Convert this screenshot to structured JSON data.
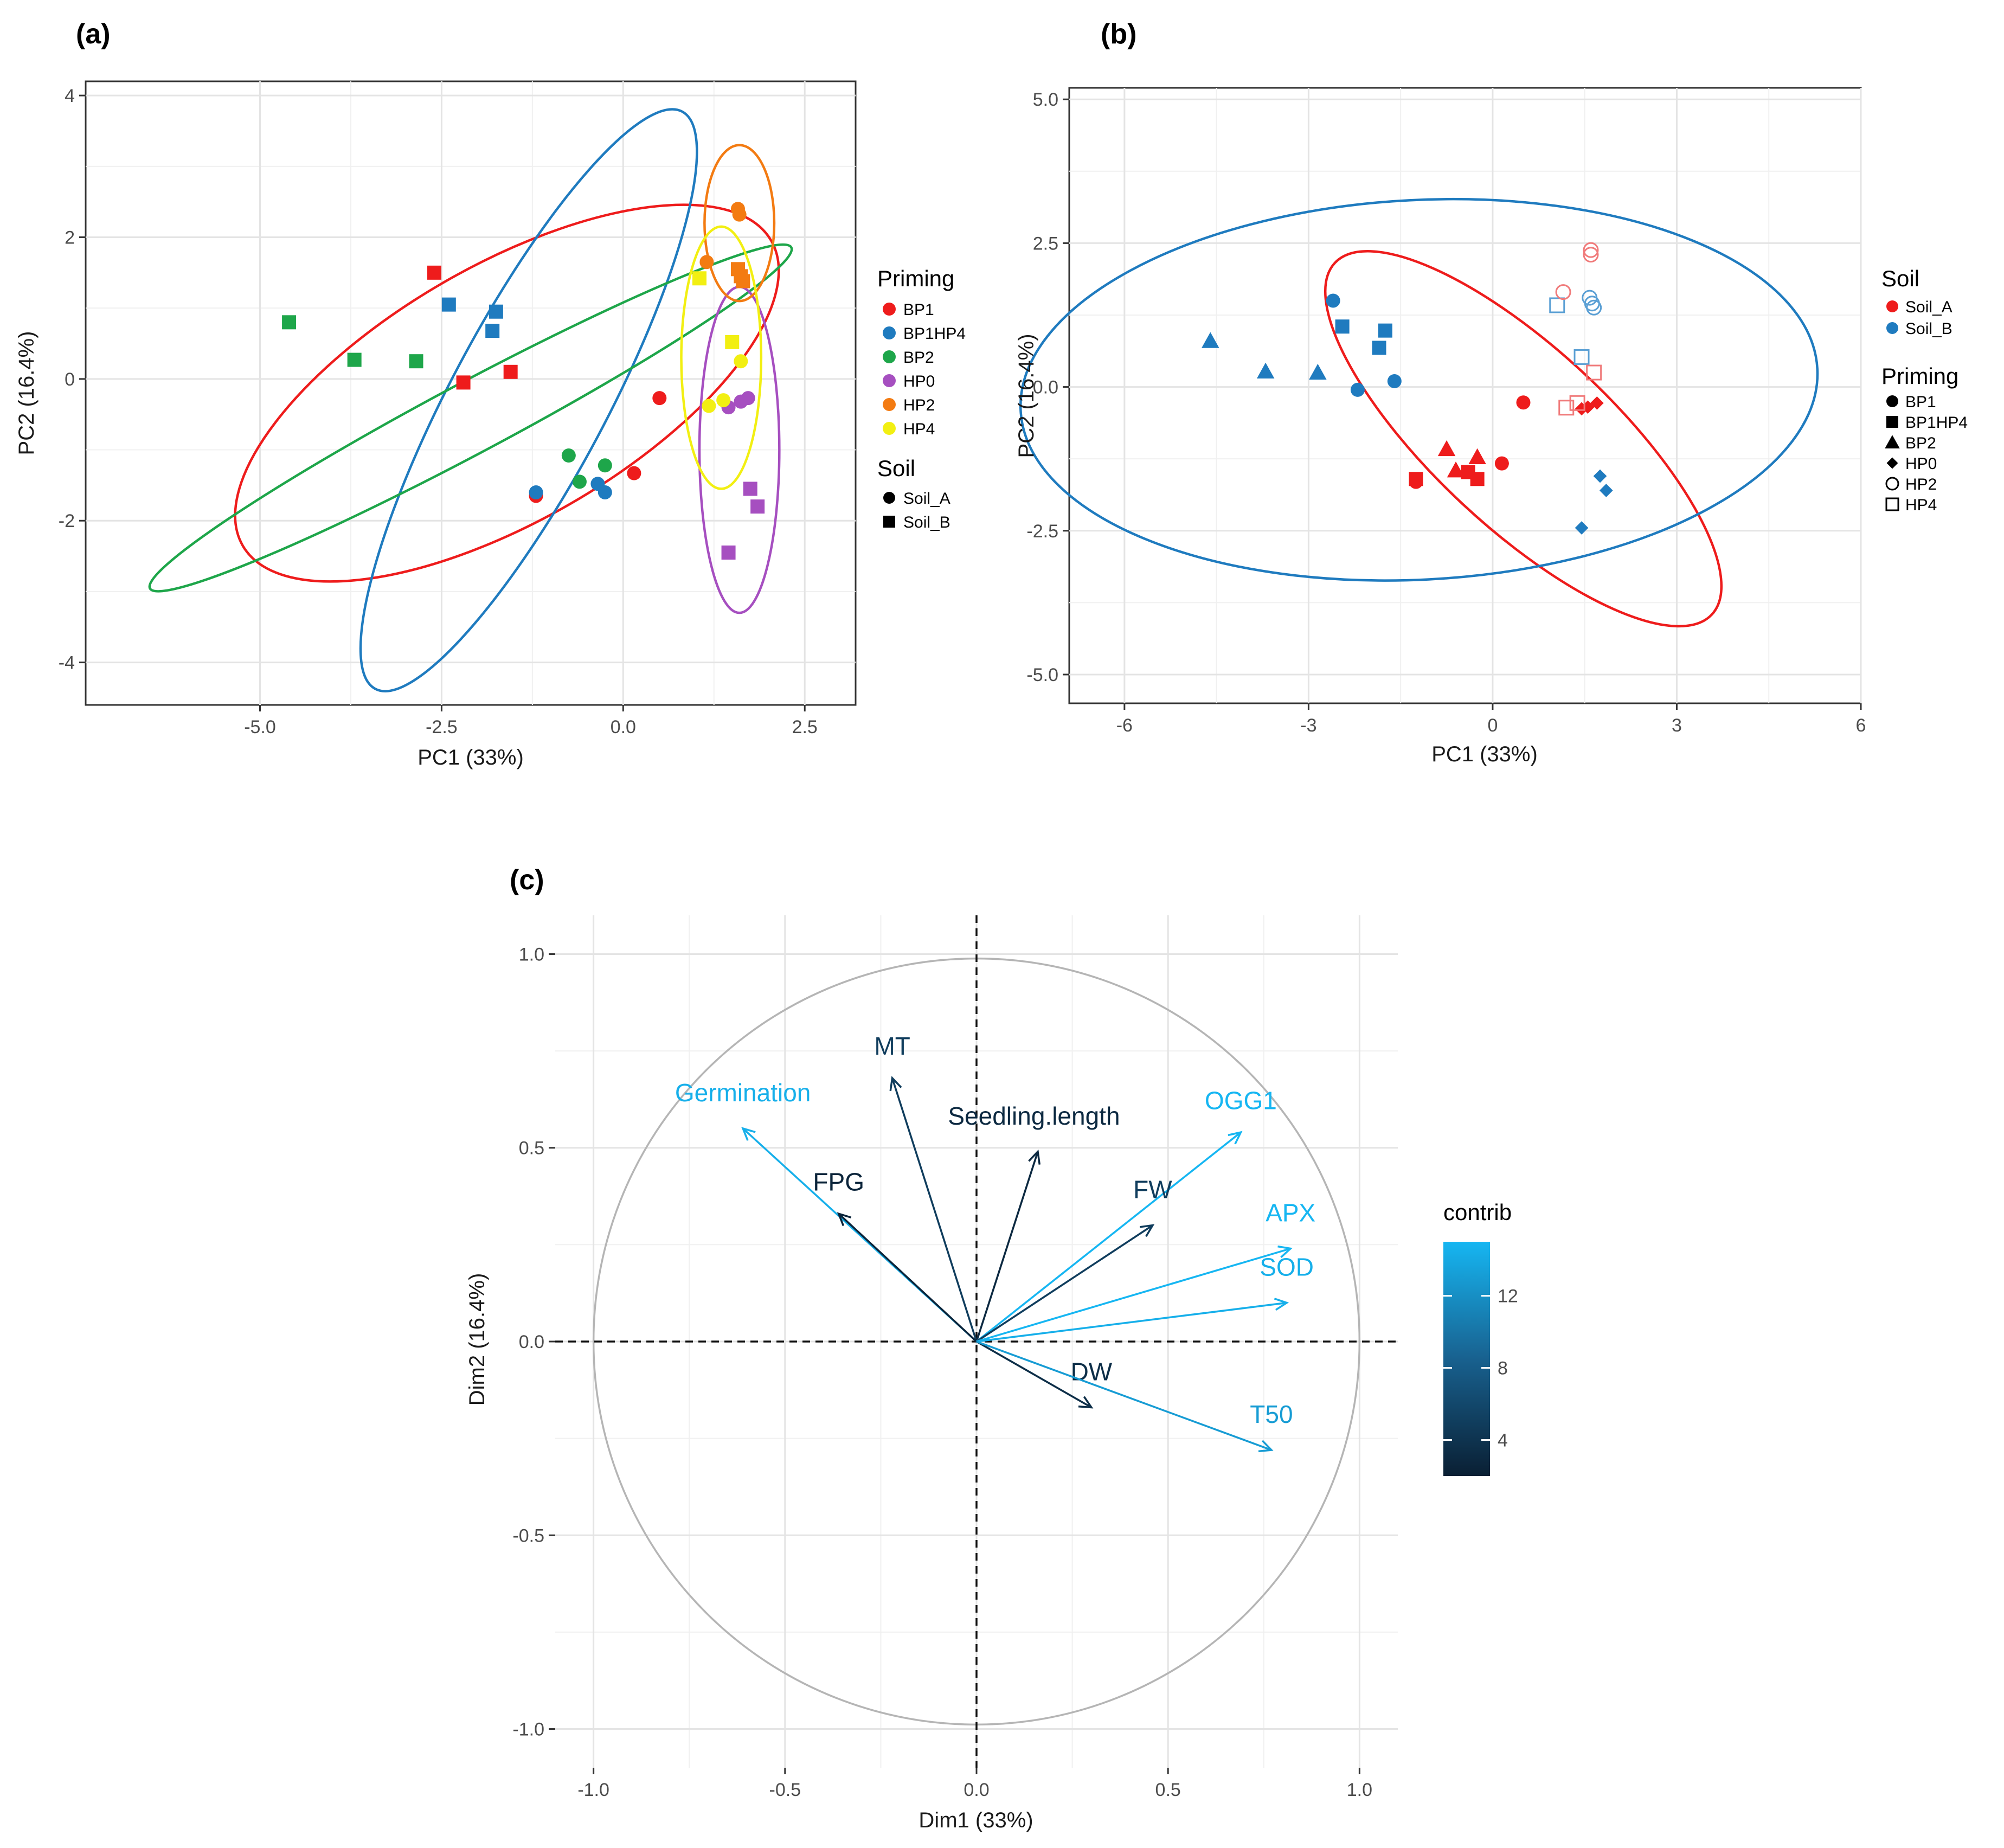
{
  "figure": {
    "label_a": "(a)",
    "label_b": "(b)",
    "label_c": "(c)"
  },
  "colors": {
    "BP1": "#ee1c1c",
    "BP1HP4": "#1f7bbf",
    "BP2": "#1ea64a",
    "HP0": "#a64fc0",
    "HP2": "#f37b12",
    "HP4": "#f2ef12",
    "Soil_A": "#ee1c1c",
    "Soil_B": "#1f7bbf",
    "contrib_low": "#0a1f33",
    "contrib_high": "#16b6f2"
  },
  "chart_data": [
    {
      "id": "a",
      "type": "scatter",
      "title": "(a)",
      "xlabel": "PC1 (33%)",
      "ylabel": "PC2 (16.4%)",
      "xlim": [
        -7.4,
        3.2
      ],
      "ylim": [
        -4.6,
        4.2
      ],
      "xticks": [
        -5.0,
        -2.5,
        0.0,
        2.5
      ],
      "xtick_labels": [
        "-5.0",
        "-2.5",
        "0.0",
        "2.5"
      ],
      "yticks": [
        -4,
        -2,
        0,
        2,
        4
      ],
      "ytick_labels": [
        "-4",
        "-2",
        "0",
        "2",
        "4"
      ],
      "grid": true,
      "legend_priming_title": "Priming",
      "legend_priming": [
        "BP1",
        "BP1HP4",
        "BP2",
        "HP0",
        "HP2",
        "HP4"
      ],
      "legend_soil_title": "Soil",
      "legend_soil": [
        "Soil_A",
        "Soil_B"
      ],
      "ellipses": [
        {
          "group": "BP1",
          "cx": -1.6,
          "cy": -0.2,
          "rx": 4.2,
          "ry": 1.8,
          "angle": -30
        },
        {
          "group": "BP1HP4",
          "cx": -1.3,
          "cy": -0.3,
          "rx": 4.5,
          "ry": 1.1,
          "angle": -62
        },
        {
          "group": "BP2",
          "cx": -2.1,
          "cy": -0.55,
          "rx": 5.0,
          "ry": 0.5,
          "angle": -28
        },
        {
          "group": "HP0",
          "cx": 1.6,
          "cy": -1.0,
          "rx": 0.55,
          "ry": 2.3,
          "angle": 0
        },
        {
          "group": "HP2",
          "cx": 1.6,
          "cy": 2.2,
          "rx": 0.48,
          "ry": 1.1,
          "angle": 0
        },
        {
          "group": "HP4",
          "cx": 1.35,
          "cy": 0.3,
          "rx": 0.55,
          "ry": 1.85,
          "angle": 0
        }
      ],
      "points": [
        {
          "x": -2.6,
          "y": 1.5,
          "g": "BP1",
          "s": "Soil_B"
        },
        {
          "x": -2.2,
          "y": -0.05,
          "g": "BP1",
          "s": "Soil_B"
        },
        {
          "x": -1.55,
          "y": 0.1,
          "g": "BP1",
          "s": "Soil_B"
        },
        {
          "x": 0.5,
          "y": -0.27,
          "g": "BP1",
          "s": "Soil_A"
        },
        {
          "x": 0.15,
          "y": -1.33,
          "g": "BP1",
          "s": "Soil_A"
        },
        {
          "x": -1.2,
          "y": -1.65,
          "g": "BP1",
          "s": "Soil_A"
        },
        {
          "x": -2.4,
          "y": 1.05,
          "g": "BP1HP4",
          "s": "Soil_B"
        },
        {
          "x": -1.75,
          "y": 0.95,
          "g": "BP1HP4",
          "s": "Soil_B"
        },
        {
          "x": -1.8,
          "y": 0.68,
          "g": "BP1HP4",
          "s": "Soil_B"
        },
        {
          "x": -1.2,
          "y": -1.6,
          "g": "BP1HP4",
          "s": "Soil_A"
        },
        {
          "x": -0.35,
          "y": -1.48,
          "g": "BP1HP4",
          "s": "Soil_A"
        },
        {
          "x": -0.25,
          "y": -1.6,
          "g": "BP1HP4",
          "s": "Soil_A"
        },
        {
          "x": -4.6,
          "y": 0.8,
          "g": "BP2",
          "s": "Soil_B"
        },
        {
          "x": -3.7,
          "y": 0.27,
          "g": "BP2",
          "s": "Soil_B"
        },
        {
          "x": -2.85,
          "y": 0.25,
          "g": "BP2",
          "s": "Soil_B"
        },
        {
          "x": -0.75,
          "y": -1.08,
          "g": "BP2",
          "s": "Soil_A"
        },
        {
          "x": -0.6,
          "y": -1.45,
          "g": "BP2",
          "s": "Soil_A"
        },
        {
          "x": -0.25,
          "y": -1.22,
          "g": "BP2",
          "s": "Soil_A"
        },
        {
          "x": 1.45,
          "y": -0.4,
          "g": "HP0",
          "s": "Soil_A"
        },
        {
          "x": 1.62,
          "y": -0.32,
          "g": "HP0",
          "s": "Soil_A"
        },
        {
          "x": 1.72,
          "y": -0.27,
          "g": "HP0",
          "s": "Soil_A"
        },
        {
          "x": 1.75,
          "y": -1.55,
          "g": "HP0",
          "s": "Soil_B"
        },
        {
          "x": 1.85,
          "y": -1.8,
          "g": "HP0",
          "s": "Soil_B"
        },
        {
          "x": 1.45,
          "y": -2.45,
          "g": "HP0",
          "s": "Soil_B"
        },
        {
          "x": 1.15,
          "y": 1.65,
          "g": "HP2",
          "s": "Soil_A"
        },
        {
          "x": 1.58,
          "y": 2.4,
          "g": "HP2",
          "s": "Soil_A"
        },
        {
          "x": 1.6,
          "y": 2.32,
          "g": "HP2",
          "s": "Soil_A"
        },
        {
          "x": 1.58,
          "y": 1.55,
          "g": "HP2",
          "s": "Soil_B"
        },
        {
          "x": 1.62,
          "y": 1.45,
          "g": "HP2",
          "s": "Soil_B"
        },
        {
          "x": 1.65,
          "y": 1.38,
          "g": "HP2",
          "s": "Soil_B"
        },
        {
          "x": 1.05,
          "y": 1.42,
          "g": "HP4",
          "s": "Soil_B"
        },
        {
          "x": 1.5,
          "y": 0.52,
          "g": "HP4",
          "s": "Soil_B"
        },
        {
          "x": 1.62,
          "y": 0.25,
          "g": "HP4",
          "s": "Soil_A"
        },
        {
          "x": 1.18,
          "y": -0.38,
          "g": "HP4",
          "s": "Soil_A"
        },
        {
          "x": 1.38,
          "y": -0.3,
          "g": "HP4",
          "s": "Soil_A"
        }
      ]
    },
    {
      "id": "b",
      "type": "scatter",
      "title": "(b)",
      "xlabel": "PC1 (33%)",
      "ylabel": "PC2 (16.4%)",
      "xlim": [
        -6.9,
        6.0
      ],
      "ylim": [
        -5.5,
        5.2
      ],
      "xticks": [
        -6,
        -3,
        0,
        3,
        6
      ],
      "xtick_labels": [
        "-6",
        "-3",
        "0",
        "3",
        "6"
      ],
      "yticks": [
        -5.0,
        -2.5,
        0.0,
        2.5,
        5.0
      ],
      "ytick_labels": [
        "-5.0",
        "-2.5",
        "0.0",
        "2.5",
        "5.0"
      ],
      "grid": true,
      "legend_soil_title": "Soil",
      "legend_soil": [
        "Soil_A",
        "Soil_B"
      ],
      "legend_priming_title": "Priming",
      "legend_priming": [
        "BP1",
        "BP1HP4",
        "BP2",
        "HP0",
        "HP2",
        "HP4"
      ],
      "ellipses": [
        {
          "group": "Soil_A",
          "cx": 0.5,
          "cy": -0.9,
          "rx": 4.2,
          "ry": 1.55,
          "angle": 43
        },
        {
          "group": "Soil_B",
          "cx": -1.2,
          "cy": -0.05,
          "rx": 6.5,
          "ry": 3.3,
          "angle": -3
        }
      ],
      "points": [
        {
          "x": -4.6,
          "y": 0.8,
          "g": "BP2",
          "s": "Soil_B"
        },
        {
          "x": -3.7,
          "y": 0.27,
          "g": "BP2",
          "s": "Soil_B"
        },
        {
          "x": -2.85,
          "y": 0.25,
          "g": "BP2",
          "s": "Soil_B"
        },
        {
          "x": -2.6,
          "y": 1.5,
          "g": "BP1",
          "s": "Soil_B"
        },
        {
          "x": -2.2,
          "y": -0.05,
          "g": "BP1",
          "s": "Soil_B"
        },
        {
          "x": -1.6,
          "y": 0.1,
          "g": "BP1",
          "s": "Soil_B"
        },
        {
          "x": -2.45,
          "y": 1.05,
          "g": "BP1HP4",
          "s": "Soil_B"
        },
        {
          "x": -1.75,
          "y": 0.98,
          "g": "BP1HP4",
          "s": "Soil_B"
        },
        {
          "x": -1.85,
          "y": 0.68,
          "g": "BP1HP4",
          "s": "Soil_B"
        },
        {
          "x": 1.75,
          "y": -1.55,
          "g": "HP0",
          "s": "Soil_B"
        },
        {
          "x": 1.85,
          "y": -1.8,
          "g": "HP0",
          "s": "Soil_B"
        },
        {
          "x": 1.45,
          "y": -2.45,
          "g": "HP0",
          "s": "Soil_B"
        },
        {
          "x": 1.58,
          "y": 1.55,
          "g": "HP2",
          "s": "Soil_B"
        },
        {
          "x": 1.62,
          "y": 1.45,
          "g": "HP2",
          "s": "Soil_B"
        },
        {
          "x": 1.65,
          "y": 1.38,
          "g": "HP2",
          "s": "Soil_B"
        },
        {
          "x": 1.05,
          "y": 1.42,
          "g": "HP4",
          "s": "Soil_B"
        },
        {
          "x": 1.45,
          "y": 0.52,
          "g": "HP4",
          "s": "Soil_B"
        },
        {
          "x": 0.5,
          "y": -0.27,
          "g": "BP1",
          "s": "Soil_A"
        },
        {
          "x": 0.15,
          "y": -1.33,
          "g": "BP1",
          "s": "Soil_A"
        },
        {
          "x": -1.25,
          "y": -1.65,
          "g": "BP1",
          "s": "Soil_A"
        },
        {
          "x": -1.25,
          "y": -1.6,
          "g": "BP1HP4",
          "s": "Soil_A"
        },
        {
          "x": -0.4,
          "y": -1.48,
          "g": "BP1HP4",
          "s": "Soil_A"
        },
        {
          "x": -0.25,
          "y": -1.6,
          "g": "BP1HP4",
          "s": "Soil_A"
        },
        {
          "x": -0.75,
          "y": -1.08,
          "g": "BP2",
          "s": "Soil_A"
        },
        {
          "x": -0.6,
          "y": -1.45,
          "g": "BP2",
          "s": "Soil_A"
        },
        {
          "x": -0.25,
          "y": -1.22,
          "g": "BP2",
          "s": "Soil_A"
        },
        {
          "x": 1.45,
          "y": -0.38,
          "g": "HP0",
          "s": "Soil_A"
        },
        {
          "x": 1.55,
          "y": -0.35,
          "g": "HP0",
          "s": "Soil_A"
        },
        {
          "x": 1.7,
          "y": -0.28,
          "g": "HP0",
          "s": "Soil_A"
        },
        {
          "x": 1.15,
          "y": 1.65,
          "g": "HP2",
          "s": "Soil_A"
        },
        {
          "x": 1.6,
          "y": 2.38,
          "g": "HP2",
          "s": "Soil_A"
        },
        {
          "x": 1.6,
          "y": 2.3,
          "g": "HP2",
          "s": "Soil_A"
        },
        {
          "x": 1.65,
          "y": 0.25,
          "g": "HP4",
          "s": "Soil_A"
        },
        {
          "x": 1.2,
          "y": -0.36,
          "g": "HP4",
          "s": "Soil_A"
        },
        {
          "x": 1.38,
          "y": -0.28,
          "g": "HP4",
          "s": "Soil_A"
        }
      ]
    },
    {
      "id": "c",
      "type": "biplot",
      "title": "(c)",
      "xlabel": "Dim1 (33%)",
      "ylabel": "Dim2 (16.4%)",
      "xlim": [
        -1.1,
        1.1
      ],
      "ylim": [
        -1.1,
        1.1
      ],
      "xticks": [
        -1.0,
        -0.5,
        0.0,
        0.5,
        1.0
      ],
      "xtick_labels": [
        "-1.0",
        "-0.5",
        "0.0",
        "0.5",
        "1.0"
      ],
      "yticks": [
        -1.0,
        -0.5,
        0.0,
        0.5,
        1.0
      ],
      "ytick_labels": [
        "-1.0",
        "-0.5",
        "0.0",
        "0.5",
        "1.0"
      ],
      "grid": true,
      "legend_title": "contrib",
      "legend_range": [
        2,
        15
      ],
      "legend_ticks": [
        4,
        8,
        12
      ],
      "legend_tick_labels": [
        "4",
        "8",
        "12"
      ],
      "variables": [
        {
          "name": "Germination",
          "x": -0.61,
          "y": 0.55,
          "contrib": 14.5,
          "lx": -0.61,
          "ly": 0.62
        },
        {
          "name": "MT",
          "x": -0.22,
          "y": 0.68,
          "contrib": 5,
          "lx": -0.22,
          "ly": 0.74
        },
        {
          "name": "Seedling.length",
          "x": 0.16,
          "y": 0.49,
          "contrib": 3,
          "lx": 0.15,
          "ly": 0.56
        },
        {
          "name": "FPG",
          "x": -0.36,
          "y": 0.33,
          "contrib": 2.5,
          "lx": -0.36,
          "ly": 0.39
        },
        {
          "name": "OGG1",
          "x": 0.69,
          "y": 0.54,
          "contrib": 15,
          "lx": 0.69,
          "ly": 0.6
        },
        {
          "name": "FW",
          "x": 0.46,
          "y": 0.3,
          "contrib": 5,
          "lx": 0.46,
          "ly": 0.37
        },
        {
          "name": "APX",
          "x": 0.82,
          "y": 0.24,
          "contrib": 15,
          "lx": 0.82,
          "ly": 0.31
        },
        {
          "name": "SOD",
          "x": 0.81,
          "y": 0.1,
          "contrib": 14.5,
          "lx": 0.81,
          "ly": 0.17
        },
        {
          "name": "DW",
          "x": 0.3,
          "y": -0.17,
          "contrib": 3.5,
          "lx": 0.3,
          "ly": -0.1
        },
        {
          "name": "T50",
          "x": 0.77,
          "y": -0.28,
          "contrib": 13,
          "lx": 0.77,
          "ly": -0.21
        }
      ]
    }
  ]
}
